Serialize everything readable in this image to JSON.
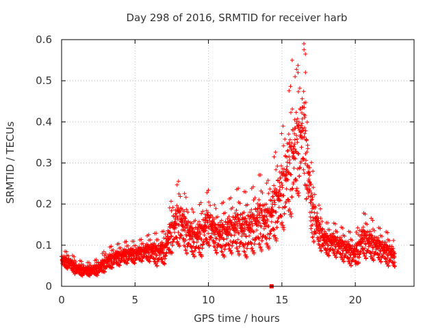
{
  "chart_data": {
    "type": "scatter",
    "title": "Day 298 of 2016, SRMTID for receiver harb",
    "xlabel": "GPS time / hours",
    "ylabel": "SRMTID / TECUs",
    "xlim": [
      0,
      24
    ],
    "ylim": [
      0,
      0.6
    ],
    "x_ticks": [
      0,
      5,
      10,
      15,
      20
    ],
    "x_tick_labels": [
      "0",
      "5",
      "10",
      "15",
      "20"
    ],
    "y_ticks": [
      0,
      0.1,
      0.2,
      0.3,
      0.4,
      0.5,
      0.6
    ],
    "y_tick_labels": [
      "0",
      "0.1",
      "0.2",
      "0.3",
      "0.4",
      "0.5",
      "0.6"
    ],
    "grid": true,
    "marker": "plus",
    "marker_color": "#ff0000",
    "series": [
      {
        "name": "SRMTID",
        "envelope_x": [
          0,
          0.5,
          1,
          1.5,
          2,
          2.5,
          3,
          3.5,
          4,
          4.5,
          5,
          5.5,
          6,
          6.5,
          7,
          7.5,
          8,
          8.5,
          9,
          9.5,
          10,
          10.5,
          11,
          11.5,
          12,
          12.5,
          13,
          13.5,
          14,
          14.5,
          15,
          15.5,
          16,
          16.5,
          17,
          17.5,
          18,
          18.5,
          19,
          19.5,
          20,
          20.5,
          21,
          21.5,
          22,
          22.5,
          22.7
        ],
        "envelope_y": [
          0.065,
          0.06,
          0.045,
          0.04,
          0.04,
          0.045,
          0.06,
          0.07,
          0.075,
          0.08,
          0.08,
          0.085,
          0.09,
          0.085,
          0.09,
          0.14,
          0.17,
          0.14,
          0.12,
          0.13,
          0.16,
          0.13,
          0.13,
          0.14,
          0.15,
          0.14,
          0.15,
          0.17,
          0.16,
          0.2,
          0.24,
          0.3,
          0.35,
          0.4,
          0.2,
          0.14,
          0.11,
          0.11,
          0.1,
          0.09,
          0.08,
          0.12,
          0.11,
          0.1,
          0.09,
          0.08,
          0.07
        ],
        "spread": [
          0.015,
          0.015,
          0.015,
          0.012,
          0.012,
          0.015,
          0.02,
          0.02,
          0.02,
          0.02,
          0.02,
          0.02,
          0.025,
          0.03,
          0.03,
          0.05,
          0.06,
          0.05,
          0.04,
          0.05,
          0.05,
          0.04,
          0.05,
          0.05,
          0.06,
          0.06,
          0.06,
          0.07,
          0.06,
          0.08,
          0.09,
          0.12,
          0.12,
          0.12,
          0.07,
          0.04,
          0.03,
          0.03,
          0.03,
          0.03,
          0.03,
          0.04,
          0.04,
          0.03,
          0.03,
          0.03,
          0.02
        ],
        "samples_per_hour": 120,
        "extra_points": [
          {
            "x": 14.3,
            "y": 0.0,
            "marker": "square"
          },
          {
            "x": 16.5,
            "y": 0.59
          },
          {
            "x": 16.6,
            "y": 0.565
          },
          {
            "x": 15.9,
            "y": 0.51
          },
          {
            "x": 16.1,
            "y": 0.52
          },
          {
            "x": 15.7,
            "y": 0.55
          }
        ]
      }
    ]
  }
}
